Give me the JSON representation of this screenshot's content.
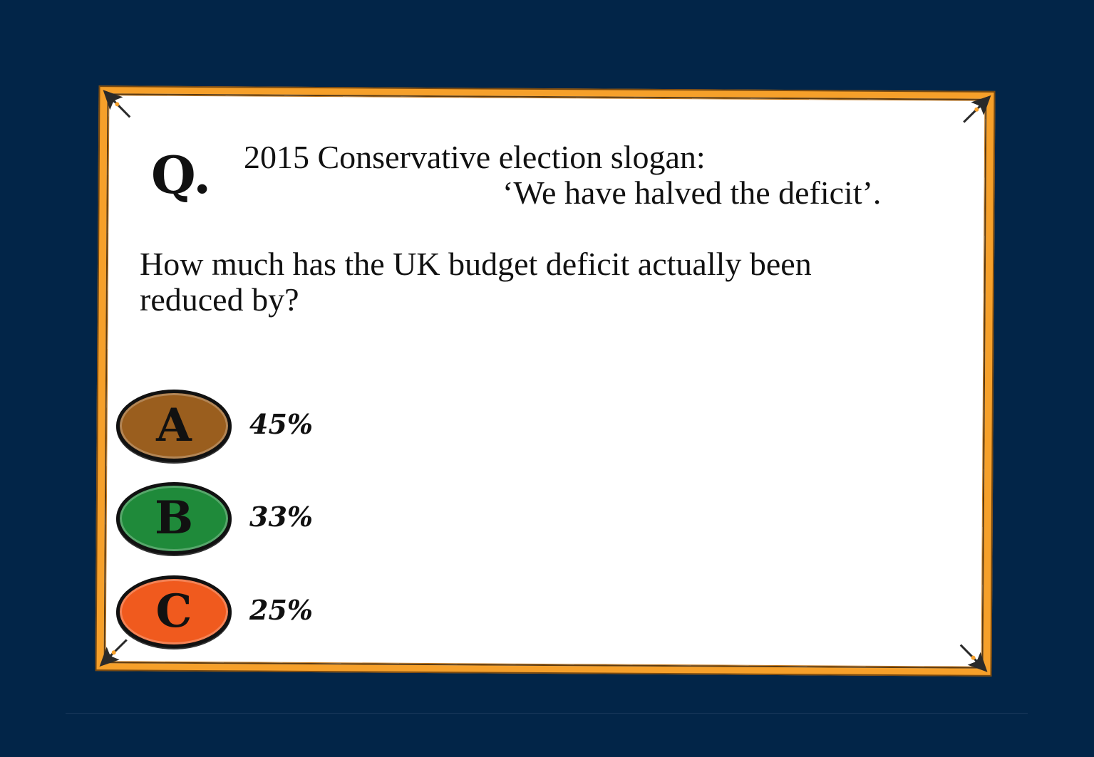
{
  "card": {
    "q_label": "Q.",
    "slogan_intro": "2015 Conservative election slogan:",
    "slogan_quote": "‘We have halved the deficit’.",
    "question": "How much has the UK budget deficit actually been reduced by?"
  },
  "options": [
    {
      "letter": "A",
      "value": "45%",
      "color": "#9a5e1e"
    },
    {
      "letter": "B",
      "value": "33%",
      "color": "#1f8a3a"
    },
    {
      "letter": "C",
      "value": "25%",
      "color": "#f05a1e"
    }
  ],
  "colors": {
    "background": "#022548",
    "card_border": "#f6a02a",
    "card_face": "#ffffff"
  }
}
